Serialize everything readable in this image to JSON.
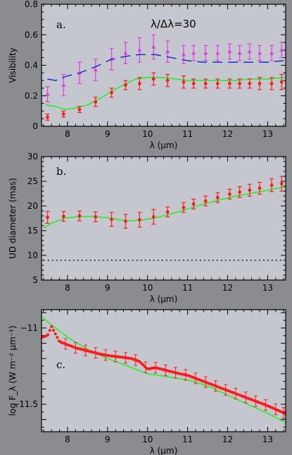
{
  "colors": {
    "page_bg": "#8a8c90",
    "panel_bg": "#c9ccd2",
    "red": "#ff1a1a",
    "magenta": "#e838e8",
    "blue": "#1a2fd6",
    "green": "#22ee22",
    "black": "#000000"
  },
  "chart_data": [
    {
      "type": "scatter",
      "panel_label": "a.",
      "title": "λ/Δλ=30",
      "xlabel": "λ (μm)",
      "ylabel": "Visibility",
      "xlim": [
        7.35,
        13.45
      ],
      "ylim": [
        0,
        0.8
      ],
      "xticks": [
        8,
        9,
        10,
        11,
        12,
        13
      ],
      "yticks": [
        0,
        0.2,
        0.4,
        0.6,
        0.8
      ],
      "ytick_labels": [
        "0",
        "0.2",
        "0.4",
        "0.6",
        "0.8"
      ],
      "series": [
        {
          "style": "points_errorbars",
          "color": "magenta",
          "points": [
            [
              7.5,
              0.21,
              0.05
            ],
            [
              7.9,
              0.27,
              0.07
            ],
            [
              8.3,
              0.35,
              0.07
            ],
            [
              8.7,
              0.37,
              0.07
            ],
            [
              9.1,
              0.44,
              0.07
            ],
            [
              9.45,
              0.48,
              0.07
            ],
            [
              9.8,
              0.5,
              0.08
            ],
            [
              10.15,
              0.52,
              0.08
            ],
            [
              10.5,
              0.49,
              0.07
            ],
            [
              10.9,
              0.47,
              0.06
            ],
            [
              11.15,
              0.48,
              0.05
            ],
            [
              11.45,
              0.48,
              0.05
            ],
            [
              11.75,
              0.48,
              0.05
            ],
            [
              12.05,
              0.49,
              0.05
            ],
            [
              12.3,
              0.48,
              0.05
            ],
            [
              12.55,
              0.49,
              0.05
            ],
            [
              12.8,
              0.48,
              0.05
            ],
            [
              13.1,
              0.48,
              0.05
            ],
            [
              13.35,
              0.5,
              0.05
            ]
          ]
        },
        {
          "style": "dashed_line",
          "color": "blue",
          "points": [
            [
              7.5,
              0.31
            ],
            [
              7.7,
              0.3
            ],
            [
              8.0,
              0.33
            ],
            [
              8.3,
              0.35
            ],
            [
              8.7,
              0.39
            ],
            [
              9.1,
              0.44
            ],
            [
              9.5,
              0.46
            ],
            [
              9.8,
              0.47
            ],
            [
              10.2,
              0.47
            ],
            [
              10.6,
              0.45
            ],
            [
              11.0,
              0.43
            ],
            [
              11.4,
              0.42
            ],
            [
              11.8,
              0.42
            ],
            [
              12.2,
              0.42
            ],
            [
              12.6,
              0.42
            ],
            [
              13.0,
              0.42
            ],
            [
              13.4,
              0.43
            ]
          ]
        },
        {
          "style": "solid_line",
          "color": "green",
          "points": [
            [
              7.45,
              0.14
            ],
            [
              7.7,
              0.13
            ],
            [
              7.95,
              0.11
            ],
            [
              8.2,
              0.12
            ],
            [
              8.5,
              0.14
            ],
            [
              8.8,
              0.18
            ],
            [
              9.1,
              0.23
            ],
            [
              9.4,
              0.27
            ],
            [
              9.7,
              0.31
            ],
            [
              10.0,
              0.32
            ],
            [
              10.3,
              0.32
            ],
            [
              10.7,
              0.31
            ],
            [
              11.0,
              0.3
            ],
            [
              11.4,
              0.3
            ],
            [
              11.8,
              0.3
            ],
            [
              12.2,
              0.3
            ],
            [
              12.6,
              0.31
            ],
            [
              13.0,
              0.31
            ],
            [
              13.45,
              0.32
            ]
          ]
        },
        {
          "style": "points_errorbars",
          "color": "red",
          "points": [
            [
              7.5,
              0.06,
              0.02
            ],
            [
              7.9,
              0.08,
              0.02
            ],
            [
              8.3,
              0.11,
              0.02
            ],
            [
              8.7,
              0.16,
              0.03
            ],
            [
              9.1,
              0.22,
              0.03
            ],
            [
              9.45,
              0.27,
              0.03
            ],
            [
              9.8,
              0.28,
              0.04
            ],
            [
              10.15,
              0.31,
              0.04
            ],
            [
              10.5,
              0.3,
              0.04
            ],
            [
              10.9,
              0.29,
              0.04
            ],
            [
              11.15,
              0.28,
              0.03
            ],
            [
              11.45,
              0.28,
              0.03
            ],
            [
              11.75,
              0.28,
              0.03
            ],
            [
              12.05,
              0.28,
              0.03
            ],
            [
              12.3,
              0.28,
              0.03
            ],
            [
              12.55,
              0.28,
              0.03
            ],
            [
              12.8,
              0.28,
              0.04
            ],
            [
              13.1,
              0.28,
              0.04
            ],
            [
              13.35,
              0.29,
              0.05
            ]
          ]
        }
      ]
    },
    {
      "type": "scatter",
      "panel_label": "b.",
      "xlabel": "λ (μm)",
      "ylabel": "UD diameter (mas)",
      "xlim": [
        7.35,
        13.45
      ],
      "ylim": [
        5,
        30
      ],
      "xticks": [
        8,
        9,
        10,
        11,
        12,
        13
      ],
      "yticks": [
        5,
        10,
        15,
        20,
        25,
        30
      ],
      "ytick_labels": [
        "5",
        "10",
        "15",
        "20",
        "25",
        "30"
      ],
      "series": [
        {
          "style": "dotted_line",
          "color": "black",
          "points": [
            [
              7.4,
              9
            ],
            [
              13.4,
              9
            ]
          ]
        },
        {
          "style": "solid_line",
          "color": "green",
          "points": [
            [
              7.4,
              15.5
            ],
            [
              7.6,
              16.5
            ],
            [
              7.9,
              17.5
            ],
            [
              8.2,
              17.8
            ],
            [
              8.6,
              17.9
            ],
            [
              9.0,
              17.6
            ],
            [
              9.3,
              17.2
            ],
            [
              9.6,
              17.0
            ],
            [
              9.9,
              17.2
            ],
            [
              10.2,
              17.6
            ],
            [
              10.6,
              18.4
            ],
            [
              11.0,
              19.4
            ],
            [
              11.4,
              20.4
            ],
            [
              11.8,
              21.2
            ],
            [
              12.2,
              22.0
            ],
            [
              12.6,
              22.6
            ],
            [
              13.0,
              23.2
            ],
            [
              13.45,
              23.9
            ]
          ]
        },
        {
          "style": "points_errorbars",
          "color": "red",
          "points": [
            [
              7.5,
              17.7,
              1.2
            ],
            [
              7.9,
              17.9,
              1.0
            ],
            [
              8.3,
              18.0,
              1.0
            ],
            [
              8.7,
              17.8,
              1.0
            ],
            [
              9.1,
              17.3,
              1.4
            ],
            [
              9.45,
              16.9,
              1.4
            ],
            [
              9.8,
              17.2,
              1.5
            ],
            [
              10.15,
              17.8,
              1.5
            ],
            [
              10.5,
              18.8,
              1.0
            ],
            [
              10.9,
              19.7,
              1.0
            ],
            [
              11.15,
              20.4,
              1.0
            ],
            [
              11.45,
              21.0,
              1.0
            ],
            [
              11.75,
              21.7,
              1.0
            ],
            [
              12.05,
              22.4,
              1.0
            ],
            [
              12.3,
              22.8,
              1.1
            ],
            [
              12.55,
              23.2,
              1.2
            ],
            [
              12.8,
              23.6,
              1.2
            ],
            [
              13.1,
              24.2,
              1.3
            ],
            [
              13.35,
              24.5,
              1.5
            ]
          ]
        }
      ]
    },
    {
      "type": "line",
      "panel_label": "c.",
      "xlabel": "λ (μm)",
      "ylabel": "log F_λ (W m⁻² μm⁻¹)",
      "xlim": [
        7.35,
        13.45
      ],
      "ylim": [
        -11.68,
        -10.88
      ],
      "xticks": [
        8,
        9,
        10,
        11,
        12,
        13
      ],
      "yticks": [
        -11,
        -11.5
      ],
      "ytick_labels": [
        "−11",
        "−11.5"
      ],
      "series": [
        {
          "style": "solid_line",
          "color": "green",
          "points": [
            [
              7.37,
              -10.93
            ],
            [
              7.6,
              -10.98
            ],
            [
              8.0,
              -11.06
            ],
            [
              8.5,
              -11.14
            ],
            [
              9.0,
              -11.2
            ],
            [
              9.5,
              -11.25
            ],
            [
              10.0,
              -11.3
            ],
            [
              10.5,
              -11.32
            ],
            [
              11.0,
              -11.34
            ],
            [
              11.5,
              -11.38
            ],
            [
              12.0,
              -11.44
            ],
            [
              12.5,
              -11.5
            ],
            [
              13.0,
              -11.56
            ],
            [
              13.45,
              -11.62
            ]
          ]
        },
        {
          "style": "dense_points",
          "color": "red",
          "xstart": 7.37,
          "xend": 13.43,
          "points": [
            [
              7.37,
              -11.06
            ],
            [
              7.5,
              -11.05
            ],
            [
              7.6,
              -10.99
            ],
            [
              7.7,
              -11.04
            ],
            [
              7.8,
              -11.09
            ],
            [
              8.0,
              -11.11
            ],
            [
              8.2,
              -11.13
            ],
            [
              8.5,
              -11.15
            ],
            [
              8.8,
              -11.17
            ],
            [
              9.0,
              -11.18
            ],
            [
              9.3,
              -11.19
            ],
            [
              9.6,
              -11.2
            ],
            [
              9.8,
              -11.22
            ],
            [
              10.0,
              -11.27
            ],
            [
              10.2,
              -11.26
            ],
            [
              10.5,
              -11.28
            ],
            [
              10.8,
              -11.3
            ],
            [
              11.0,
              -11.31
            ],
            [
              11.5,
              -11.36
            ],
            [
              12.0,
              -11.41
            ],
            [
              12.5,
              -11.46
            ],
            [
              13.0,
              -11.51
            ],
            [
              13.43,
              -11.56
            ]
          ],
          "errorbar_x": [
            7.95,
            8.2,
            8.45,
            8.7,
            8.95,
            9.2,
            9.45,
            9.7,
            9.95,
            10.2,
            10.45,
            10.7,
            10.95,
            11.2,
            11.45,
            11.7,
            11.95,
            12.2,
            12.45,
            12.7,
            12.95,
            13.2,
            13.4
          ],
          "error": 0.035
        }
      ]
    }
  ]
}
